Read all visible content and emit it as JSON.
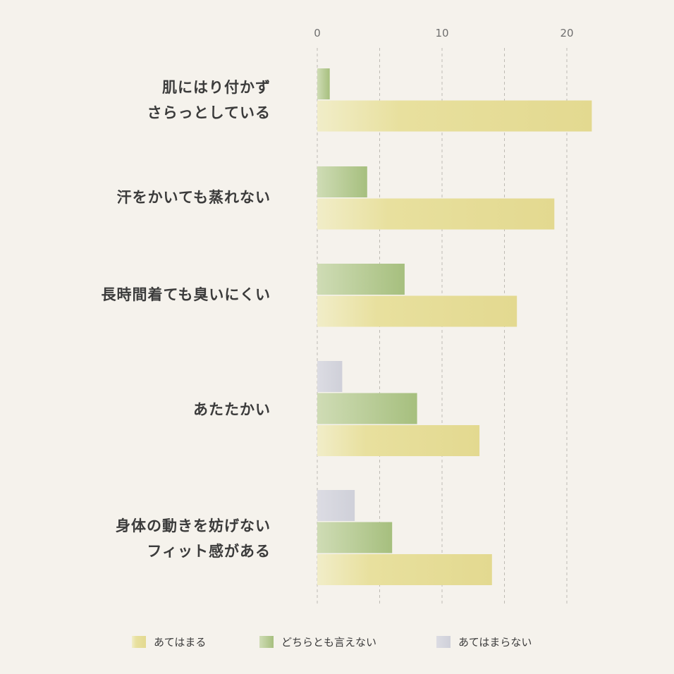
{
  "chart_data": {
    "type": "bar",
    "orientation": "horizontal",
    "categories": [
      [
        "肌にはり付かず",
        "さらっとしている"
      ],
      [
        "汗をかいても蒸れない"
      ],
      [
        "長時間着ても臭いにくい"
      ],
      [
        "あたたかい"
      ],
      [
        "身体の動きを妨げない",
        "フィット感がある"
      ]
    ],
    "series": [
      {
        "name": "あてはまらない",
        "color": "#d6d6de",
        "values": [
          0,
          0,
          0,
          2,
          3
        ]
      },
      {
        "name": "どちらとも言えない",
        "color": "#b9cd98",
        "values": [
          1,
          4,
          7,
          8,
          6
        ]
      },
      {
        "name": "あてはまる",
        "color": "#e8e0a0",
        "values": [
          22,
          19,
          16,
          13,
          14
        ]
      }
    ],
    "xticks": [
      0,
      10,
      20
    ],
    "xlim": [
      0,
      22
    ],
    "grid": true,
    "legend": {
      "position": "bottom",
      "order": [
        "あてはまる",
        "どちらとも言えない",
        "あてはまらない"
      ]
    },
    "title": "",
    "xlabel": "",
    "ylabel": ""
  }
}
